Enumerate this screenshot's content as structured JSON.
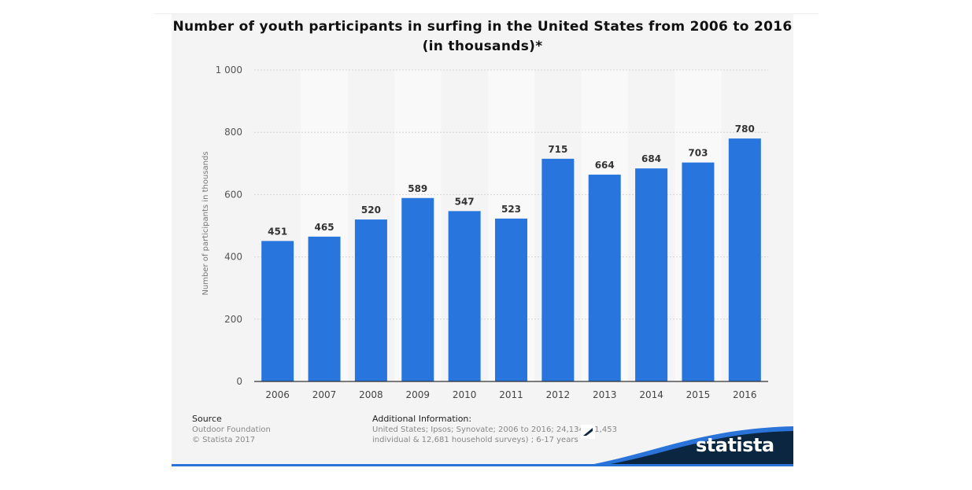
{
  "chart_data": {
    "type": "bar",
    "title": "Number of youth participants in surfing in the United States from 2006 to 2016 (in thousands)*",
    "title_lines": [
      "Number of youth participants in surfing in the United States from 2006 to 2016",
      "(in thousands)*"
    ],
    "xlabel": "",
    "ylabel": "Number of participants in thousands",
    "categories": [
      "2006",
      "2007",
      "2008",
      "2009",
      "2010",
      "2011",
      "2012",
      "2013",
      "2014",
      "2015",
      "2016"
    ],
    "values": [
      451,
      465,
      520,
      589,
      547,
      523,
      715,
      664,
      684,
      703,
      780
    ],
    "ylim": [
      0,
      1000
    ],
    "yticks": [
      0,
      200,
      400,
      600,
      800,
      1000
    ],
    "ytick_labels": [
      "0",
      "200",
      "400",
      "600",
      "800",
      "1 000"
    ],
    "grid": true,
    "legend": "none",
    "bar_color": "#2876dd"
  },
  "footer": {
    "source_heading": "Source",
    "source_lines": [
      "Outdoor Foundation",
      "© Statista 2017"
    ],
    "info_heading": "Additional Information:",
    "info_lines": [
      "United States; Ipsos; Synovate; 2006 to 2016; 24,134 (11,453",
      "individual & 12,681 household surveys) ; 6-17 years"
    ]
  },
  "brand": {
    "name": "statista",
    "colors": {
      "dark": "#0b2640",
      "accent": "#2a73d9"
    }
  }
}
